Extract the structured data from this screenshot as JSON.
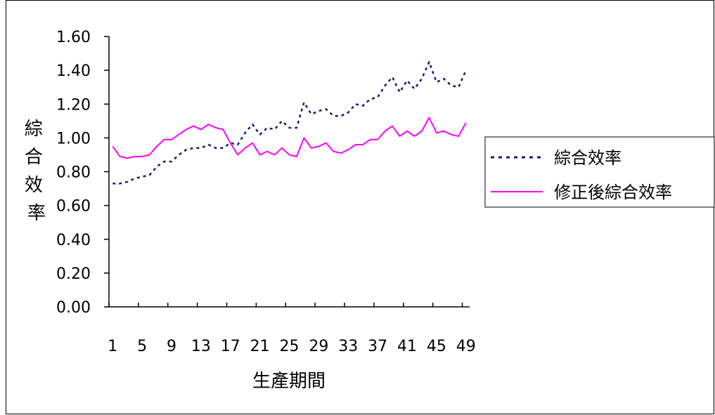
{
  "chart_data": {
    "type": "line",
    "title": "",
    "xlabel": "生產期間",
    "ylabel": "綜合效率",
    "ylim": [
      0,
      1.6
    ],
    "yticks": [
      "0.00",
      "0.20",
      "0.40",
      "0.60",
      "0.80",
      "1.00",
      "1.20",
      "1.40",
      "1.60"
    ],
    "x": [
      1,
      2,
      3,
      4,
      5,
      6,
      7,
      8,
      9,
      10,
      11,
      12,
      13,
      14,
      15,
      16,
      17,
      18,
      19,
      20,
      21,
      22,
      23,
      24,
      25,
      26,
      27,
      28,
      29,
      30,
      31,
      32,
      33,
      34,
      35,
      36,
      37,
      38,
      39,
      40,
      41,
      42,
      43,
      44,
      45,
      46,
      47,
      48,
      49
    ],
    "xticks": [
      "1",
      "5",
      "9",
      "13",
      "17",
      "21",
      "25",
      "29",
      "33",
      "37",
      "41",
      "45",
      "49"
    ],
    "legend_position": "right",
    "series": [
      {
        "name": "綜合效率",
        "style": "dotted",
        "color": "#1a1a6e",
        "values": [
          0.73,
          0.73,
          0.74,
          0.76,
          0.77,
          0.78,
          0.83,
          0.86,
          0.86,
          0.9,
          0.93,
          0.94,
          0.94,
          0.96,
          0.94,
          0.94,
          0.97,
          0.96,
          1.03,
          1.08,
          1.02,
          1.06,
          1.05,
          1.1,
          1.06,
          1.06,
          1.21,
          1.14,
          1.16,
          1.17,
          1.13,
          1.13,
          1.15,
          1.2,
          1.19,
          1.23,
          1.24,
          1.31,
          1.36,
          1.27,
          1.34,
          1.29,
          1.35,
          1.45,
          1.33,
          1.35,
          1.31,
          1.3,
          1.4
        ]
      },
      {
        "name": "修正後綜合效率",
        "style": "solid",
        "color": "#ff00ff",
        "values": [
          0.95,
          0.89,
          0.88,
          0.89,
          0.89,
          0.9,
          0.95,
          0.99,
          0.99,
          1.02,
          1.05,
          1.07,
          1.05,
          1.08,
          1.06,
          1.05,
          0.97,
          0.9,
          0.94,
          0.97,
          0.9,
          0.92,
          0.9,
          0.94,
          0.9,
          0.89,
          1.0,
          0.94,
          0.95,
          0.97,
          0.92,
          0.91,
          0.93,
          0.96,
          0.96,
          0.99,
          0.99,
          1.04,
          1.07,
          1.01,
          1.04,
          1.01,
          1.04,
          1.12,
          1.03,
          1.04,
          1.02,
          1.01,
          1.09
        ]
      }
    ]
  }
}
